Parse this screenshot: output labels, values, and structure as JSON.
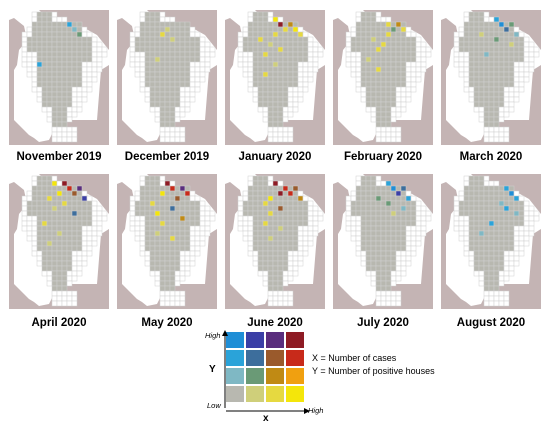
{
  "panels": [
    {
      "label": "November 2019"
    },
    {
      "label": "December 2019"
    },
    {
      "label": "January 2020"
    },
    {
      "label": "February 2020"
    },
    {
      "label": "March 2020"
    },
    {
      "label": "April 2020"
    },
    {
      "label": "May 2020"
    },
    {
      "label": "June 2020"
    },
    {
      "label": "July 2020"
    },
    {
      "label": "August 2020"
    }
  ],
  "legend": {
    "y_axis": "Y",
    "x_axis": "x",
    "high_y": "High",
    "high_x": "High",
    "low": "Low",
    "x_desc": "X = Number of cases",
    "y_desc": "Y = Number of positive houses",
    "palette": [
      [
        "#1f8ed6",
        "#3b3fa6",
        "#5a2d7d",
        "#8e1b24"
      ],
      [
        "#2aa3d9",
        "#3d6e9c",
        "#9a5a2c",
        "#c82a1a"
      ],
      [
        "#7fb8c4",
        "#6a9a76",
        "#c08a14",
        "#f0a010"
      ],
      [
        "#b8b8b0",
        "#cfcf7a",
        "#e6d940",
        "#f4e60a"
      ]
    ]
  },
  "colors": {
    "land": "#c4b4b4",
    "grid_empty": "#ffffff",
    "grid_line": "#d0d0d0",
    "no_cases": "#b8b8b0"
  }
}
